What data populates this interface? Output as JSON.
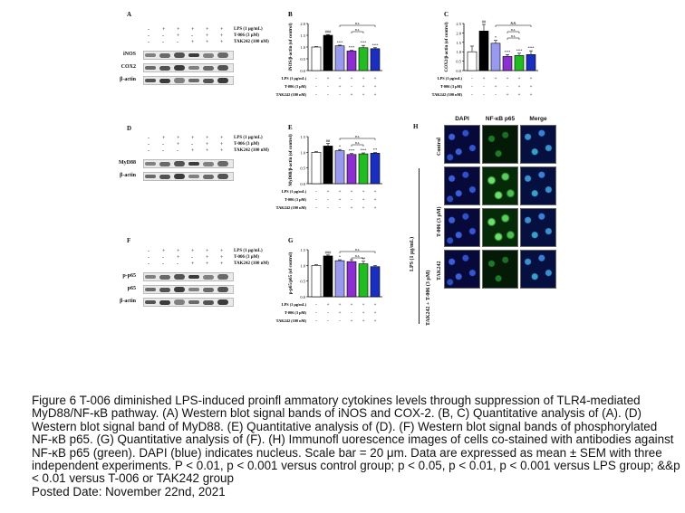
{
  "panels": {
    "A": {
      "letter": "A",
      "treatments": [
        "LPS (1 μg/mL)",
        "T-006 (3 μM)",
        "TAK242 (100 nM)"
      ],
      "signs": [
        [
          "-",
          "+",
          "+",
          "+",
          "+",
          "+"
        ],
        [
          "-",
          "-",
          "+",
          "-",
          "+",
          "+"
        ],
        [
          "-",
          "-",
          "-",
          "+",
          "+",
          "+"
        ]
      ],
      "blots": [
        "iNOS",
        "COX2",
        "β-actin"
      ]
    },
    "D": {
      "letter": "D",
      "treatments": [
        "LPS (1 μg/mL)",
        "T-006 (3 μM)",
        "TAK242 (100 nM)"
      ],
      "signs": [
        [
          "-",
          "+",
          "+",
          "+",
          "+",
          "+"
        ],
        [
          "-",
          "-",
          "+",
          "-",
          "+",
          "+"
        ],
        [
          "-",
          "-",
          "-",
          "+",
          "+",
          "+"
        ]
      ],
      "blots": [
        "MyD88",
        "β-actin"
      ]
    },
    "F": {
      "letter": "F",
      "treatments": [
        "LPS (1 μg/mL)",
        "T-006 (3 μM)",
        "TAK242 (100 nM)"
      ],
      "signs": [
        [
          "-",
          "+",
          "+",
          "+",
          "+",
          "+"
        ],
        [
          "-",
          "-",
          "+",
          "-",
          "+",
          "+"
        ],
        [
          "-",
          "-",
          "-",
          "+",
          "+",
          "+"
        ]
      ],
      "blots": [
        "p-p65",
        "p65",
        "β-actin"
      ]
    },
    "H": {
      "letter": "H",
      "columns": [
        "DAPI",
        "NF-κB p65",
        "Merge"
      ],
      "rows": [
        "Control",
        "T-006 (3 μM)",
        "TAK242",
        "TAK242 + T-006 (3 μM)"
      ],
      "group_label": "LPS (1 μg/mL)"
    }
  },
  "chart_data": [
    {
      "panel": "B",
      "type": "bar",
      "ylabel": "iNOS/β-actin (of control)",
      "ylim": [
        0,
        2.0
      ],
      "yticks": [
        "0.0",
        "0.5",
        "1.0",
        "1.5",
        "2.0"
      ],
      "values": [
        1.0,
        1.5,
        1.05,
        0.83,
        0.97,
        0.93
      ],
      "errors": [
        0.02,
        0.03,
        0.03,
        0.03,
        0.1,
        0.04
      ],
      "colors": [
        "#ffffff",
        "#000000",
        "#9999ee",
        "#8b2fd0",
        "#22bb22",
        "#1a2fbf"
      ],
      "significance": [
        "",
        "###",
        "***",
        "***",
        "***",
        "***"
      ],
      "brackets": [
        "n.s.",
        "n.s."
      ],
      "treatment_labels": [
        "LPS (1 μg/mL)",
        "T-006 (3 μM)",
        "TAK242 (100 nM)"
      ],
      "signs": [
        [
          "-",
          "+",
          "+",
          "+",
          "+",
          "+"
        ],
        [
          "-",
          "-",
          "+",
          "-",
          "+",
          "+"
        ],
        [
          "-",
          "-",
          "-",
          "+",
          "+",
          "+"
        ]
      ]
    },
    {
      "panel": "C",
      "type": "bar",
      "ylabel": "COX2/β-actin (of control)",
      "ylim": [
        0,
        2.5
      ],
      "yticks": [
        "0.0",
        "0.5",
        "1.0",
        "1.5",
        "2.0",
        "2.5"
      ],
      "values": [
        1.0,
        2.1,
        1.45,
        0.75,
        0.8,
        0.85
      ],
      "errors": [
        0.3,
        0.35,
        0.15,
        0.1,
        0.12,
        0.2
      ],
      "colors": [
        "#ffffff",
        "#000000",
        "#9999ee",
        "#8b2fd0",
        "#22bb22",
        "#1a2fbf"
      ],
      "significance": [
        "",
        "##",
        "*",
        "***",
        "***",
        "***"
      ],
      "brackets": [
        "&&",
        "n.s.",
        "n.s."
      ],
      "treatment_labels": [
        "LPS (1 μg/mL)",
        "T-006 (3 μM)",
        "TAK242 (100 nM)"
      ],
      "signs": [
        [
          "-",
          "+",
          "+",
          "+",
          "+",
          "+"
        ],
        [
          "-",
          "-",
          "+",
          "-",
          "+",
          "+"
        ],
        [
          "-",
          "-",
          "-",
          "+",
          "+",
          "+"
        ]
      ]
    },
    {
      "panel": "E",
      "type": "bar",
      "ylabel": "MyD88/β-actin (of control)",
      "ylim": [
        0,
        1.5
      ],
      "yticks": [
        "0.0",
        "0.5",
        "1.0",
        "1.5"
      ],
      "values": [
        1.0,
        1.2,
        1.05,
        0.93,
        0.95,
        0.97
      ],
      "errors": [
        0.02,
        0.08,
        0.04,
        0.03,
        0.03,
        0.02
      ],
      "colors": [
        "#ffffff",
        "#000000",
        "#9999ee",
        "#8b2fd0",
        "#22bb22",
        "#1a2fbf"
      ],
      "significance": [
        "",
        "##",
        "*",
        "***",
        "***",
        "**"
      ],
      "brackets": [
        "n.s.",
        "n.s."
      ],
      "treatment_labels": [
        "LPS (1 μg/mL)",
        "T-006 (3 μM)",
        "TAK242 (100 nM)"
      ],
      "signs": [
        [
          "-",
          "+",
          "+",
          "+",
          "+",
          "+"
        ],
        [
          "-",
          "-",
          "+",
          "-",
          "+",
          "+"
        ],
        [
          "-",
          "-",
          "-",
          "+",
          "+",
          "+"
        ]
      ]
    },
    {
      "panel": "G",
      "type": "bar",
      "ylabel": "p-p65/p65 (of control)",
      "ylim": [
        0,
        1.5
      ],
      "yticks": [
        "0.0",
        "0.5",
        "1.0",
        "1.5"
      ],
      "values": [
        1.0,
        1.3,
        1.15,
        1.12,
        1.05,
        0.96
      ],
      "errors": [
        0.02,
        0.03,
        0.03,
        0.06,
        0.08,
        0.03
      ],
      "colors": [
        "#ffffff",
        "#000000",
        "#9999ee",
        "#8b2fd0",
        "#22bb22",
        "#1a2fbf"
      ],
      "significance": [
        "",
        "###",
        "*",
        "",
        "**",
        ""
      ],
      "brackets": [
        "n.s.",
        "n.s."
      ],
      "treatment_labels": [
        "LPS (1 μg/mL)",
        "T-006 (3 μM)",
        "TAK242 (100 nM)"
      ],
      "signs": [
        [
          "-",
          "+",
          "+",
          "+",
          "+",
          "+"
        ],
        [
          "-",
          "-",
          "+",
          "-",
          "+",
          "+"
        ],
        [
          "-",
          "-",
          "-",
          "+",
          "+",
          "+"
        ]
      ]
    }
  ],
  "caption": {
    "text": "Figure 6 T-006 diminished LPS-induced proinfl ammatory cytokines levels through suppression of TLR4-mediated MyD88/NF-κB pathway. (A) Western blot signal bands of iNOS and COX-2. (B, C) Quantitative analysis of (A). (D) Western blot signal band of MyD88. (E) Quantitative analysis of (D). (F) Western blot signal bands of phosphorylated NF-κB p65. (G) Quantitative analysis of (F). (H) Immunofl uorescence images of cells co-stained with antibodies against NF-κB p65 (green). DAPI (blue) indicates nucleus. Scale bar = 20 μm. Data are expressed as mean ± SEM with three independent experiments. P < 0.01, p < 0.001 versus control group; p < 0.05, p < 0.01, p < 0.001 versus LPS group; &&p < 0.01 versus T-006 or TAK242 group",
    "posted": "Posted Date: November 22nd, 2021"
  }
}
